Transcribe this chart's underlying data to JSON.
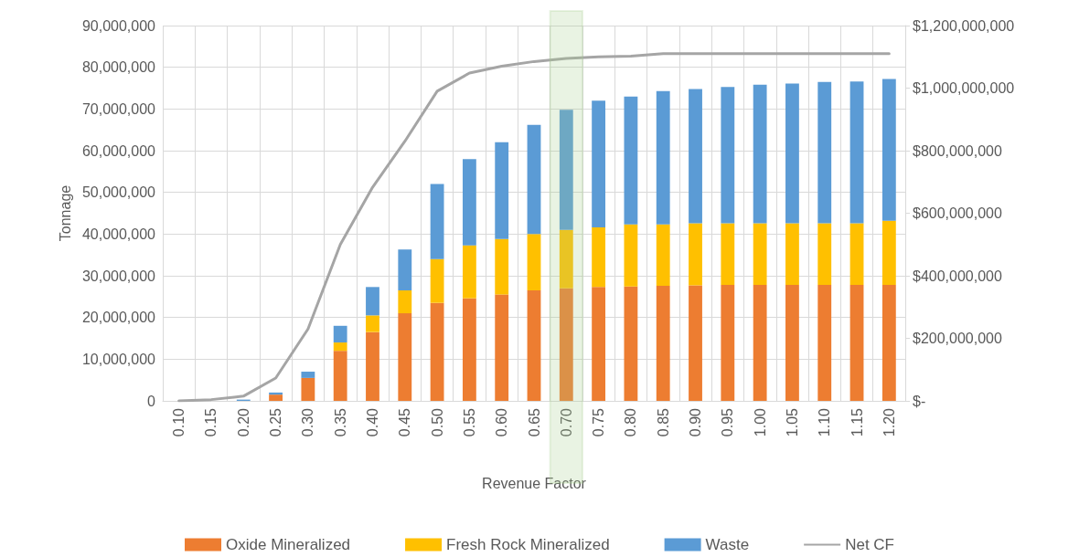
{
  "chart_data": {
    "type": "bar",
    "stacked": true,
    "xlabel": "Revenue Factor",
    "ylabel": "Tonnage",
    "categories": [
      "0.10",
      "0.15",
      "0.20",
      "0.25",
      "0.30",
      "0.35",
      "0.40",
      "0.45",
      "0.50",
      "0.55",
      "0.60",
      "0.65",
      "0.70",
      "0.75",
      "0.80",
      "0.85",
      "0.90",
      "0.95",
      "1.00",
      "1.05",
      "1.10",
      "1.15",
      "1.20"
    ],
    "series": [
      {
        "name": "Oxide Mineralized",
        "color": "#ed7d31",
        "values": [
          0,
          0,
          0,
          1500000,
          5500000,
          12000000,
          16500000,
          21000000,
          23500000,
          24600000,
          25500000,
          26500000,
          27000000,
          27300000,
          27400000,
          27600000,
          27700000,
          27800000,
          27800000,
          27800000,
          27800000,
          27800000,
          27800000
        ]
      },
      {
        "name": "Fresh Rock Mineralized",
        "color": "#ffc000",
        "values": [
          0,
          0,
          0,
          0,
          0,
          2000000,
          4000000,
          5500000,
          10500000,
          12700000,
          13300000,
          13500000,
          14000000,
          14300000,
          14900000,
          14700000,
          14900000,
          14800000,
          14800000,
          14800000,
          14800000,
          14800000,
          15400000
        ]
      },
      {
        "name": "Waste",
        "color": "#5b9bd5",
        "values": [
          0,
          0,
          300000,
          500000,
          1500000,
          4000000,
          6800000,
          9800000,
          18000000,
          20700000,
          23200000,
          26200000,
          28800000,
          30400000,
          30700000,
          32000000,
          32200000,
          32700000,
          33200000,
          33500000,
          33900000,
          34000000,
          34000000
        ]
      },
      {
        "name": "Net CF",
        "type": "line",
        "axis": "y2",
        "color": "#a5a5a5",
        "values": [
          0,
          4000000,
          15000000,
          73000000,
          230000000,
          500000000,
          683000000,
          830000000,
          990000000,
          1048000000,
          1070000000,
          1085000000,
          1095000000,
          1100000000,
          1102000000,
          1110000000,
          1110000000,
          1110000000,
          1110000000,
          1110000000,
          1110000000,
          1110000000,
          1110000000
        ]
      }
    ],
    "ylim": [
      0,
      90000000
    ],
    "yticks": [
      {
        "value": 0,
        "label": "0"
      },
      {
        "value": 10000000,
        "label": "10,000,000"
      },
      {
        "value": 20000000,
        "label": "20,000,000"
      },
      {
        "value": 30000000,
        "label": "30,000,000"
      },
      {
        "value": 40000000,
        "label": "40,000,000"
      },
      {
        "value": 50000000,
        "label": "50,000,000"
      },
      {
        "value": 60000000,
        "label": "60,000,000"
      },
      {
        "value": 70000000,
        "label": "70,000,000"
      },
      {
        "value": 80000000,
        "label": "80,000,000"
      },
      {
        "value": 90000000,
        "label": "90,000,000"
      }
    ],
    "y2lim": [
      0,
      1200000000
    ],
    "y2ticks": [
      {
        "value": 0,
        "label": "$-"
      },
      {
        "value": 200000000,
        "label": "$200,000,000"
      },
      {
        "value": 400000000,
        "label": "$400,000,000"
      },
      {
        "value": 600000000,
        "label": "$600,000,000"
      },
      {
        "value": 800000000,
        "label": "$800,000,000"
      },
      {
        "value": 1000000000,
        "label": "$1,000,000,000"
      },
      {
        "value": 1200000000,
        "label": "$1,200,000,000"
      }
    ],
    "bands": [
      {
        "axis": "x",
        "from": "0.70",
        "to": "0.70",
        "color": "#a9d18e"
      }
    ],
    "grid": true,
    "legend": "bottom",
    "marker": "none",
    "line_style": "solid"
  }
}
